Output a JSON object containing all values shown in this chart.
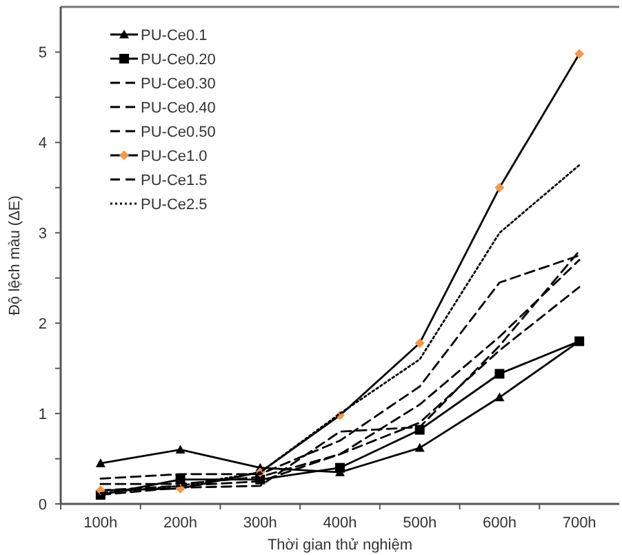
{
  "chart_data": {
    "type": "line",
    "xlabel": "Thời gian thử nghiệm",
    "ylabel": "Độ lệch màu (ΔE)",
    "categories": [
      "100h",
      "200h",
      "300h",
      "400h",
      "500h",
      "600h",
      "700h"
    ],
    "ylim": [
      0,
      5.5
    ],
    "yticks": [
      0,
      {
        "value": 0.5,
        "label": null
      },
      1,
      {
        "value": 1.5,
        "label": null
      },
      2,
      {
        "value": 2.5,
        "label": null
      },
      3,
      {
        "value": 3.5,
        "label": null
      },
      4,
      {
        "value": 4.5,
        "label": null
      },
      5
    ],
    "grid": false,
    "legend": "top left",
    "series": [
      {
        "name": "PU-Ce0.1",
        "color": "#000000",
        "marker": "triangle",
        "line_style": "solid",
        "values": [
          0.45,
          0.6,
          0.4,
          0.35,
          0.62,
          1.18,
          1.8
        ]
      },
      {
        "name": "PU-Ce0.20",
        "color": "#000000",
        "marker": "square",
        "line_style": "solid",
        "values": [
          0.1,
          0.27,
          0.27,
          0.4,
          0.82,
          1.44,
          1.8
        ]
      },
      {
        "name": "PU-Ce0.30",
        "color": "#000000",
        "marker": "none",
        "line_style": "dashed",
        "values": [
          0.22,
          0.22,
          0.3,
          0.55,
          1.1,
          1.85,
          2.7
        ]
      },
      {
        "name": "PU-Ce0.40",
        "color": "#000000",
        "marker": "none",
        "line_style": "dashed",
        "values": [
          0.1,
          0.18,
          0.2,
          0.8,
          0.85,
          1.75,
          2.8
        ]
      },
      {
        "name": "PU-Ce0.50",
        "color": "#000000",
        "marker": "none",
        "line_style": "dashed",
        "values": [
          0.15,
          0.2,
          0.25,
          0.55,
          0.9,
          1.7,
          2.4
        ]
      },
      {
        "name": "PU-Ce1.0",
        "color": "#000000",
        "colors": [
          "#f79646",
          "#f79646",
          "#f79646",
          "#f79646",
          "#f79646",
          "#f79646",
          "#f79646"
        ],
        "marker": "diamond",
        "line_style": "solid",
        "values": [
          0.15,
          0.17,
          0.35,
          0.98,
          1.78,
          3.5,
          4.98
        ]
      },
      {
        "name": "PU-Ce1.5",
        "color": "#000000",
        "marker": "none",
        "line_style": "dashed",
        "values": [
          0.28,
          0.33,
          0.33,
          0.7,
          1.3,
          2.45,
          2.75
        ]
      },
      {
        "name": "PU-Ce2.5",
        "color": "#000000",
        "marker": "none",
        "line_style": "dotted",
        "values": [
          0.12,
          0.2,
          0.35,
          1.0,
          1.6,
          3.0,
          3.75
        ]
      }
    ]
  }
}
